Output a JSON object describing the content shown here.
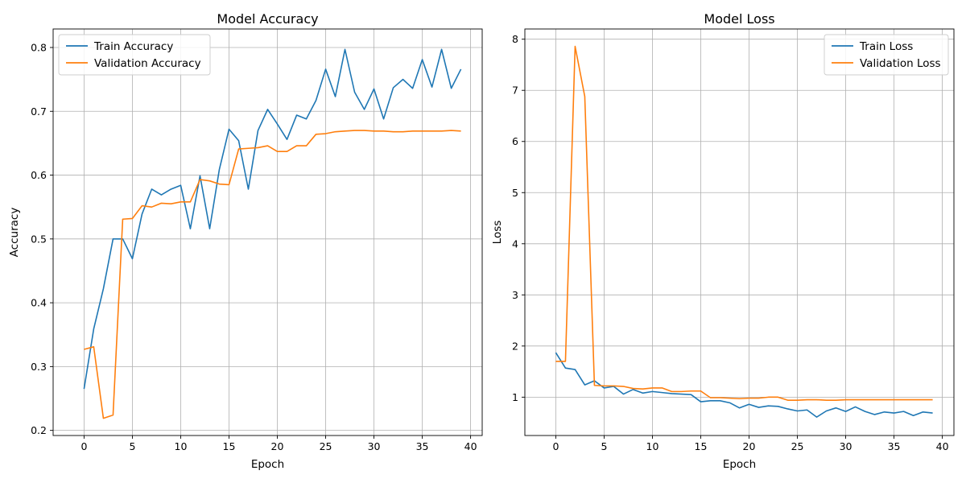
{
  "chart_data": [
    {
      "type": "line",
      "title": "Model Accuracy",
      "xlabel": "Epoch",
      "ylabel": "Accuracy",
      "xlim": [
        -3.2,
        41.2
      ],
      "ylim": [
        0.192,
        0.829
      ],
      "xticks": [
        0,
        5,
        10,
        15,
        20,
        25,
        30,
        35,
        40
      ],
      "yticks": [
        0.2,
        0.3,
        0.4,
        0.5,
        0.6,
        0.7,
        0.8
      ],
      "grid": true,
      "legend_position": "top-left",
      "x": [
        0,
        1,
        2,
        3,
        4,
        5,
        6,
        7,
        8,
        9,
        10,
        11,
        12,
        13,
        14,
        15,
        16,
        17,
        18,
        19,
        20,
        21,
        22,
        23,
        24,
        25,
        26,
        27,
        28,
        29,
        30,
        31,
        32,
        33,
        34,
        35,
        36,
        37,
        38,
        39
      ],
      "series": [
        {
          "name": "Train Accuracy",
          "color": "#1f77b4",
          "values": [
            0.265,
            0.359,
            0.422,
            0.5,
            0.5,
            0.469,
            0.539,
            0.578,
            0.569,
            0.578,
            0.584,
            0.516,
            0.599,
            0.516,
            0.609,
            0.672,
            0.654,
            0.578,
            0.67,
            0.703,
            0.68,
            0.656,
            0.694,
            0.688,
            0.717,
            0.766,
            0.723,
            0.797,
            0.73,
            0.703,
            0.735,
            0.688,
            0.737,
            0.75,
            0.736,
            0.781,
            0.738,
            0.797,
            0.736,
            0.766
          ]
        },
        {
          "name": "Validation Accuracy",
          "color": "#ff7f0e",
          "values": [
            0.327,
            0.331,
            0.219,
            0.224,
            0.531,
            0.532,
            0.552,
            0.55,
            0.556,
            0.555,
            0.558,
            0.558,
            0.593,
            0.591,
            0.586,
            0.585,
            0.641,
            0.642,
            0.643,
            0.646,
            0.637,
            0.637,
            0.646,
            0.646,
            0.664,
            0.665,
            0.668,
            0.669,
            0.67,
            0.67,
            0.669,
            0.669,
            0.668,
            0.668,
            0.669,
            0.669,
            0.669,
            0.669,
            0.67,
            0.669
          ]
        }
      ]
    },
    {
      "type": "line",
      "title": "Model Loss",
      "xlabel": "Epoch",
      "ylabel": "Loss",
      "xlim": [
        -3.2,
        41.2
      ],
      "ylim": [
        0.25,
        8.2
      ],
      "xticks": [
        0,
        5,
        10,
        15,
        20,
        25,
        30,
        35,
        40
      ],
      "yticks": [
        1,
        2,
        3,
        4,
        5,
        6,
        7,
        8
      ],
      "grid": true,
      "legend_position": "top-right",
      "x": [
        0,
        1,
        2,
        3,
        4,
        5,
        6,
        7,
        8,
        9,
        10,
        11,
        12,
        13,
        14,
        15,
        16,
        17,
        18,
        19,
        20,
        21,
        22,
        23,
        24,
        25,
        26,
        27,
        28,
        29,
        30,
        31,
        32,
        33,
        34,
        35,
        36,
        37,
        38,
        39
      ],
      "series": [
        {
          "name": "Train Loss",
          "color": "#1f77b4",
          "values": [
            1.87,
            1.57,
            1.54,
            1.24,
            1.32,
            1.18,
            1.21,
            1.06,
            1.15,
            1.08,
            1.11,
            1.09,
            1.07,
            1.06,
            1.05,
            0.91,
            0.93,
            0.93,
            0.89,
            0.79,
            0.86,
            0.8,
            0.83,
            0.82,
            0.77,
            0.73,
            0.75,
            0.61,
            0.73,
            0.79,
            0.72,
            0.81,
            0.72,
            0.66,
            0.71,
            0.69,
            0.72,
            0.64,
            0.71,
            0.69
          ]
        },
        {
          "name": "Validation Loss",
          "color": "#ff7f0e",
          "values": [
            1.7,
            1.7,
            7.86,
            6.88,
            1.23,
            1.22,
            1.22,
            1.21,
            1.17,
            1.16,
            1.18,
            1.18,
            1.11,
            1.11,
            1.12,
            1.12,
            0.99,
            0.99,
            0.98,
            0.97,
            0.98,
            0.98,
            1.0,
            1.0,
            0.94,
            0.94,
            0.95,
            0.95,
            0.94,
            0.94,
            0.95,
            0.95,
            0.95,
            0.95,
            0.95,
            0.95,
            0.95,
            0.95,
            0.95,
            0.95
          ]
        }
      ]
    }
  ]
}
